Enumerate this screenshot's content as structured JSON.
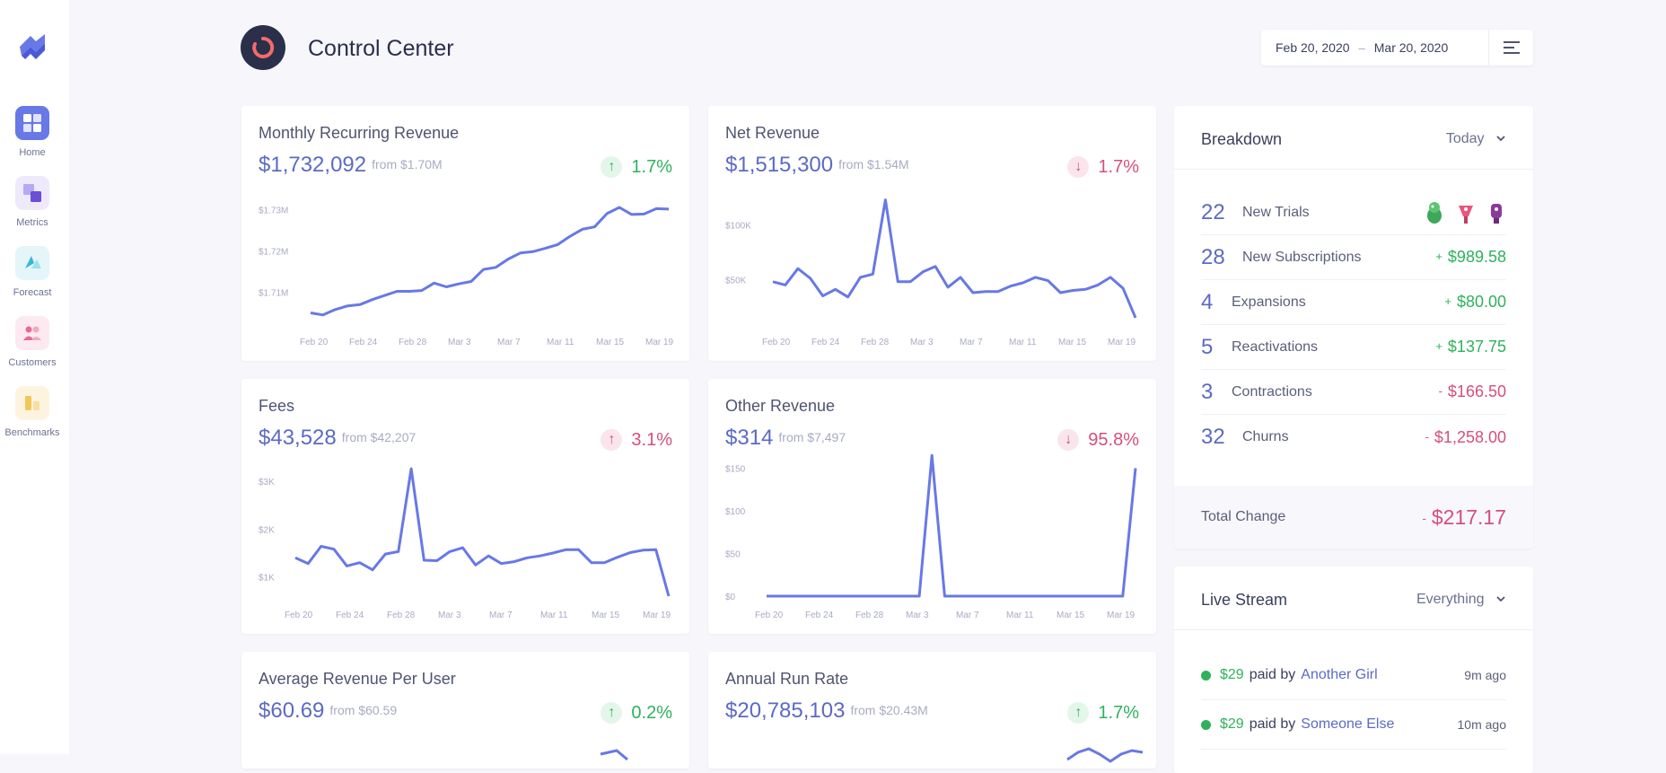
{
  "app": {
    "title": "Control Center"
  },
  "colors": {
    "accent": "#5c6ac4",
    "green": "#2eb25c",
    "red": "#d54f7c",
    "dark": "#2a2f4a"
  },
  "sidebar": {
    "items": [
      {
        "label": "Home",
        "icon": "home-icon"
      },
      {
        "label": "Metrics",
        "icon": "metrics-icon"
      },
      {
        "label": "Forecast",
        "icon": "forecast-icon"
      },
      {
        "label": "Customers",
        "icon": "customers-icon"
      },
      {
        "label": "Benchmarks",
        "icon": "benchmarks-icon"
      }
    ]
  },
  "header": {
    "date_start": "Feb 20, 2020",
    "date_sep": "–",
    "date_end": "Mar 20, 2020"
  },
  "cards": [
    {
      "title": "Monthly Recurring Revenue",
      "value": "$1,732,092",
      "from": "from $1.70M",
      "change": "1.7%",
      "direction": "up",
      "tone": "green"
    },
    {
      "title": "Net Revenue",
      "value": "$1,515,300",
      "from": "from $1.54M",
      "change": "1.7%",
      "direction": "down",
      "tone": "red"
    },
    {
      "title": "Fees",
      "value": "$43,528",
      "from": "from $42,207",
      "change": "3.1%",
      "direction": "up",
      "tone": "red"
    },
    {
      "title": "Other Revenue",
      "value": "$314",
      "from": "from $7,497",
      "change": "95.8%",
      "direction": "down",
      "tone": "red"
    },
    {
      "title": "Average Revenue Per User",
      "value": "$60.69",
      "from": "from $60.59",
      "change": "0.2%",
      "direction": "up",
      "tone": "green"
    },
    {
      "title": "Annual Run Rate",
      "value": "$20,785,103",
      "from": "from $20.43M",
      "change": "1.7%",
      "direction": "up",
      "tone": "green"
    }
  ],
  "chart_data": [
    {
      "type": "line",
      "title": "Monthly Recurring Revenue",
      "x_ticks": [
        "Feb 20",
        "Feb 24",
        "Feb 28",
        "Mar 3",
        "Mar 7",
        "Mar 11",
        "Mar 15",
        "Mar 19"
      ],
      "y_ticks": [
        "$1.71M",
        "$1.72M",
        "$1.73M"
      ],
      "ylim": [
        1.7025,
        1.7355
      ],
      "values": [
        1.705,
        1.7045,
        1.7058,
        1.7067,
        1.707,
        1.7082,
        1.7092,
        1.7102,
        1.7102,
        1.7104,
        1.7122,
        1.7113,
        1.712,
        1.7126,
        1.7155,
        1.716,
        1.718,
        1.7195,
        1.7198,
        1.7206,
        1.7215,
        1.7235,
        1.7252,
        1.7258,
        1.729,
        1.7305,
        1.7288,
        1.7289,
        1.7302,
        1.7301
      ]
    },
    {
      "type": "line",
      "title": "Net Revenue",
      "x_ticks": [
        "Feb 20",
        "Feb 24",
        "Feb 28",
        "Mar 3",
        "Mar 7",
        "Mar 11",
        "Mar 15",
        "Mar 19"
      ],
      "y_ticks": [
        "$50K",
        "$100K"
      ],
      "ylim": [
        10000,
        135000
      ],
      "values": [
        48000,
        45000,
        60000,
        51000,
        35000,
        41000,
        34000,
        52000,
        55000,
        123000,
        48000,
        48000,
        57000,
        62000,
        43000,
        52000,
        38000,
        39000,
        39000,
        44000,
        47000,
        52000,
        49000,
        38000,
        40000,
        41000,
        45000,
        52000,
        42000,
        15000
      ]
    },
    {
      "type": "line",
      "title": "Fees",
      "x_ticks": [
        "Feb 20",
        "Feb 24",
        "Feb 28",
        "Mar 3",
        "Mar 7",
        "Mar 11",
        "Mar 15",
        "Mar 19"
      ],
      "y_ticks": [
        "$1K",
        "$2K",
        "$3K"
      ],
      "ylim": [
        600,
        3450
      ],
      "values": [
        1400,
        1280,
        1640,
        1580,
        1230,
        1300,
        1150,
        1480,
        1530,
        3260,
        1350,
        1340,
        1530,
        1610,
        1250,
        1440,
        1280,
        1320,
        1400,
        1440,
        1500,
        1570,
        1570,
        1300,
        1300,
        1410,
        1510,
        1560,
        1570,
        600
      ]
    },
    {
      "type": "line",
      "title": "Other Revenue",
      "x_ticks": [
        "Feb 20",
        "Feb 24",
        "Feb 28",
        "Mar 3",
        "Mar 7",
        "Mar 11",
        "Mar 15",
        "Mar 19"
      ],
      "y_ticks": [
        "$0",
        "$50",
        "$100",
        "$150"
      ],
      "ylim": [
        0,
        160
      ],
      "values": [
        0,
        0,
        0,
        0,
        0,
        0,
        0,
        0,
        0,
        0,
        0,
        0,
        0,
        165,
        0,
        0,
        0,
        0,
        0,
        0,
        0,
        0,
        0,
        0,
        0,
        0,
        0,
        0,
        0,
        150
      ]
    }
  ],
  "breakdown": {
    "title": "Breakdown",
    "filter": "Today",
    "rows": [
      {
        "count": "22",
        "label": "New Trials",
        "sign": "",
        "amount": "",
        "tone": ""
      },
      {
        "count": "28",
        "label": "New Subscriptions",
        "sign": "+",
        "amount": "$989.58",
        "tone": "green"
      },
      {
        "count": "4",
        "label": "Expansions",
        "sign": "+",
        "amount": "$80.00",
        "tone": "green"
      },
      {
        "count": "5",
        "label": "Reactivations",
        "sign": "+",
        "amount": "$137.75",
        "tone": "green"
      },
      {
        "count": "3",
        "label": "Contractions",
        "sign": "-",
        "amount": "$166.50",
        "tone": "red"
      },
      {
        "count": "32",
        "label": "Churns",
        "sign": "-",
        "amount": "$1,258.00",
        "tone": "red"
      }
    ],
    "total_label": "Total Change",
    "total_sign": "-",
    "total_amount": "$217.17"
  },
  "livestream": {
    "title": "Live Stream",
    "filter": "Everything",
    "items": [
      {
        "amount": "$29",
        "text": "paid by",
        "name": "Another Girl",
        "time": "9m ago"
      },
      {
        "amount": "$29",
        "text": "paid by",
        "name": "Someone Else",
        "time": "10m ago"
      }
    ]
  }
}
